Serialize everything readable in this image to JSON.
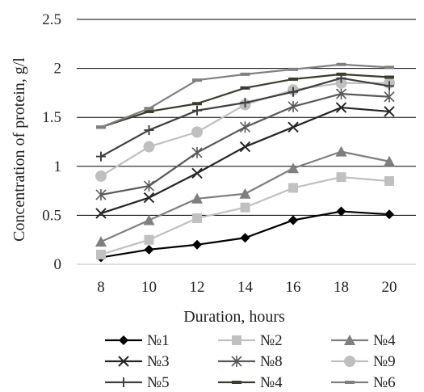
{
  "chart_data": {
    "type": "line",
    "xlabel": "Duration, hours",
    "ylabel": "Concentration of protein, g/l",
    "x": [
      8,
      10,
      12,
      14,
      16,
      18,
      20
    ],
    "x_tick_labels": [
      "8",
      "10",
      "12",
      "14",
      "16",
      "18",
      "20"
    ],
    "ylim": [
      0,
      2.5
    ],
    "y_ticks": [
      0,
      0.5,
      1,
      1.5,
      2,
      2.5
    ],
    "y_tick_labels": [
      "0",
      "0.5",
      "1",
      "1.5",
      "2",
      "2.5"
    ],
    "grid": "horizontal",
    "legend_position": "bottom",
    "series": [
      {
        "name": "№1",
        "color": "#000000",
        "marker": "diamond",
        "values": [
          0.07,
          0.15,
          0.2,
          0.27,
          0.45,
          0.54,
          0.51
        ]
      },
      {
        "name": "№2",
        "color": "#c0c0c0",
        "marker": "square",
        "values": [
          0.1,
          0.25,
          0.47,
          0.58,
          0.78,
          0.89,
          0.85
        ]
      },
      {
        "name": "№4",
        "color": "#7f7f7f",
        "marker": "triangle",
        "values": [
          0.23,
          0.45,
          0.67,
          0.72,
          0.98,
          1.15,
          1.05
        ]
      },
      {
        "name": "№3",
        "color": "#262626",
        "marker": "x",
        "values": [
          0.52,
          0.68,
          0.93,
          1.2,
          1.4,
          1.6,
          1.56
        ]
      },
      {
        "name": "№8",
        "color": "#595959",
        "marker": "star",
        "values": [
          0.71,
          0.8,
          1.14,
          1.4,
          1.61,
          1.74,
          1.71
        ]
      },
      {
        "name": "№9",
        "color": "#bfbfbf",
        "marker": "circle",
        "values": [
          0.9,
          1.2,
          1.35,
          1.63,
          1.78,
          1.85,
          1.85
        ]
      },
      {
        "name": "№5",
        "color": "#404040",
        "marker": "plus",
        "values": [
          1.1,
          1.37,
          1.57,
          1.65,
          1.76,
          1.9,
          1.82
        ]
      },
      {
        "name": "№4",
        "color": "#3b3b2e",
        "marker": "dash",
        "values": [
          1.4,
          1.56,
          1.64,
          1.8,
          1.89,
          1.94,
          1.91
        ]
      },
      {
        "name": "№6",
        "color": "#808080",
        "marker": "dash",
        "values": [
          1.4,
          1.59,
          1.88,
          1.94,
          1.99,
          2.04,
          2.01
        ]
      }
    ]
  }
}
